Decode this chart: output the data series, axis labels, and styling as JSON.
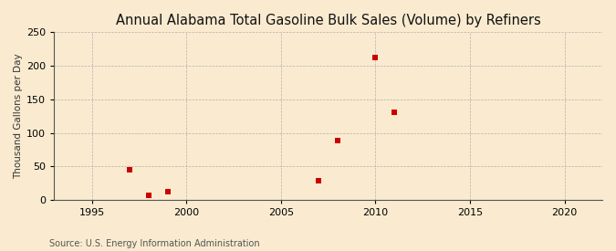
{
  "title": "Annual Alabama Total Gasoline Bulk Sales (Volume) by Refiners",
  "ylabel": "Thousand Gallons per Day",
  "source": "Source: U.S. Energy Information Administration",
  "background_color": "#faebd0",
  "plot_bg_color": "#faebd0",
  "data_x": [
    1997,
    1998,
    1999,
    2007,
    2008,
    2010,
    2011
  ],
  "data_y": [
    45,
    7,
    12,
    28,
    88,
    213,
    130
  ],
  "marker_color": "#cc0000",
  "marker_size": 4,
  "xlim": [
    1993,
    2022
  ],
  "ylim": [
    0,
    250
  ],
  "xticks": [
    1995,
    2000,
    2005,
    2010,
    2015,
    2020
  ],
  "yticks": [
    0,
    50,
    100,
    150,
    200,
    250
  ],
  "title_fontsize": 10.5,
  "label_fontsize": 7.5,
  "tick_fontsize": 8,
  "source_fontsize": 7
}
